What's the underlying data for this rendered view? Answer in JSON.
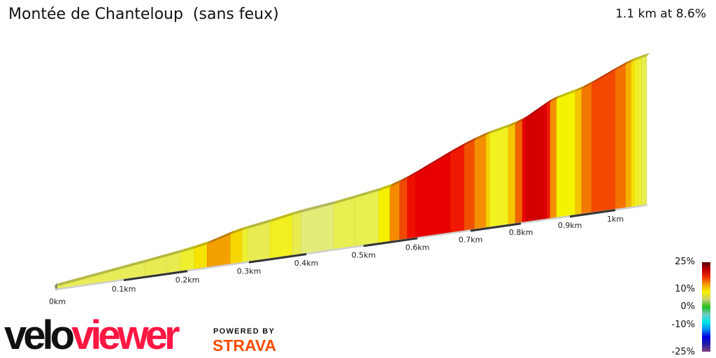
{
  "header": {
    "title": "Montée de Chanteloup  (sans feux)",
    "summary": "1.1 km at 8.6%"
  },
  "chart_data": {
    "type": "area",
    "title": "Montée de Chanteloup  (sans feux)",
    "xlabel": "",
    "ylabel": "",
    "x_unit": "km",
    "xlim": [
      0,
      1.07
    ],
    "x_ticks": [
      {
        "value": 0,
        "label": "0km"
      },
      {
        "value": 0.1,
        "label": "0.1km"
      },
      {
        "value": 0.2,
        "label": "0.2km"
      },
      {
        "value": 0.3,
        "label": "0.3km"
      },
      {
        "value": 0.4,
        "label": "0.4km"
      },
      {
        "value": 0.5,
        "label": "0.5km"
      },
      {
        "value": 0.6,
        "label": "0.6km"
      },
      {
        "value": 0.7,
        "label": "0.7km"
      },
      {
        "value": 0.8,
        "label": "0.8km"
      },
      {
        "value": 0.9,
        "label": "0.9km"
      },
      {
        "value": 1.0,
        "label": "1km"
      }
    ],
    "segments": [
      {
        "from": 0.0,
        "to": 0.133,
        "gradient": 6,
        "color": "#e8ec58"
      },
      {
        "from": 0.133,
        "to": 0.167,
        "gradient": 6,
        "color": "#e8ec50"
      },
      {
        "from": 0.167,
        "to": 0.189,
        "gradient": 6,
        "color": "#e8ec50"
      },
      {
        "from": 0.189,
        "to": 0.211,
        "gradient": 7,
        "color": "#eef030"
      },
      {
        "from": 0.211,
        "to": 0.232,
        "gradient": 8,
        "color": "#f5e400"
      },
      {
        "from": 0.232,
        "to": 0.27,
        "gradient": 12,
        "color": "#f4a000"
      },
      {
        "from": 0.27,
        "to": 0.289,
        "gradient": 9,
        "color": "#f6d800"
      },
      {
        "from": 0.289,
        "to": 0.298,
        "gradient": 7,
        "color": "#eef030"
      },
      {
        "from": 0.298,
        "to": 0.337,
        "gradient": 6,
        "color": "#e8ec50"
      },
      {
        "from": 0.337,
        "to": 0.376,
        "gradient": 7,
        "color": "#f2f020"
      },
      {
        "from": 0.376,
        "to": 0.391,
        "gradient": 6,
        "color": "#e8ec50"
      },
      {
        "from": 0.391,
        "to": 0.448,
        "gradient": 4.5,
        "color": "#e4ec78"
      },
      {
        "from": 0.448,
        "to": 0.485,
        "gradient": 6,
        "color": "#e8ef50"
      },
      {
        "from": 0.485,
        "to": 0.528,
        "gradient": 6,
        "color": "#e8ef50"
      },
      {
        "from": 0.528,
        "to": 0.549,
        "gradient": 8,
        "color": "#f5f000"
      },
      {
        "from": 0.549,
        "to": 0.567,
        "gradient": 12,
        "color": "#f48a00"
      },
      {
        "from": 0.567,
        "to": 0.581,
        "gradient": 14,
        "color": "#f04a00"
      },
      {
        "from": 0.581,
        "to": 0.597,
        "gradient": 16,
        "color": "#f01000"
      },
      {
        "from": 0.597,
        "to": 0.662,
        "gradient": 17,
        "color": "#e80000"
      },
      {
        "from": 0.662,
        "to": 0.688,
        "gradient": 15,
        "color": "#f01800"
      },
      {
        "from": 0.688,
        "to": 0.708,
        "gradient": 13,
        "color": "#f05000"
      },
      {
        "from": 0.708,
        "to": 0.731,
        "gradient": 11,
        "color": "#f49000"
      },
      {
        "from": 0.731,
        "to": 0.738,
        "gradient": 9,
        "color": "#f6d000"
      },
      {
        "from": 0.738,
        "to": 0.775,
        "gradient": 7.5,
        "color": "#f2f020"
      },
      {
        "from": 0.775,
        "to": 0.789,
        "gradient": 9.5,
        "color": "#f6c400"
      },
      {
        "from": 0.789,
        "to": 0.803,
        "gradient": 13,
        "color": "#f06400"
      },
      {
        "from": 0.803,
        "to": 0.81,
        "gradient": 16,
        "color": "#ec0000"
      },
      {
        "from": 0.81,
        "to": 0.843,
        "gradient": 19,
        "color": "#d20000"
      },
      {
        "from": 0.843,
        "to": 0.853,
        "gradient": 18,
        "color": "#dc0000"
      },
      {
        "from": 0.853,
        "to": 0.86,
        "gradient": 16,
        "color": "#f01800"
      },
      {
        "from": 0.86,
        "to": 0.873,
        "gradient": 11,
        "color": "#f49000"
      },
      {
        "from": 0.873,
        "to": 0.912,
        "gradient": 8,
        "color": "#f4f400"
      },
      {
        "from": 0.912,
        "to": 0.926,
        "gradient": 9.5,
        "color": "#f6c400"
      },
      {
        "from": 0.926,
        "to": 0.948,
        "gradient": 12,
        "color": "#f47800"
      },
      {
        "from": 0.948,
        "to": 1.0,
        "gradient": 14,
        "color": "#f44800"
      },
      {
        "from": 1.0,
        "to": 1.023,
        "gradient": 12.5,
        "color": "#f47000"
      },
      {
        "from": 1.023,
        "to": 1.035,
        "gradient": 10,
        "color": "#f6b000"
      },
      {
        "from": 1.035,
        "to": 1.042,
        "gradient": 8.5,
        "color": "#f6e000"
      },
      {
        "from": 1.042,
        "to": 1.049,
        "gradient": 7.5,
        "color": "#f2f020"
      },
      {
        "from": 1.049,
        "to": 1.058,
        "gradient": 7,
        "color": "#eef030"
      },
      {
        "from": 1.058,
        "to": 1.069,
        "gradient": 6,
        "color": "#e8ec50"
      }
    ],
    "legend": {
      "labels": [
        "25%",
        "10%",
        "0%",
        "-10%",
        "-25%"
      ],
      "colors": [
        "#5a0000",
        "#c00000",
        "#f03000",
        "#f4a000",
        "#f2f000",
        "#c8d070",
        "#20c020",
        "#70c8c8",
        "#00e8e8",
        "#0090f0",
        "#0000e0",
        "#2020a0",
        "#804080"
      ]
    }
  },
  "branding": {
    "logo_left": "velo",
    "logo_right": "viewer",
    "powered_by": "POWERED BY",
    "strava": "STRAVA"
  }
}
